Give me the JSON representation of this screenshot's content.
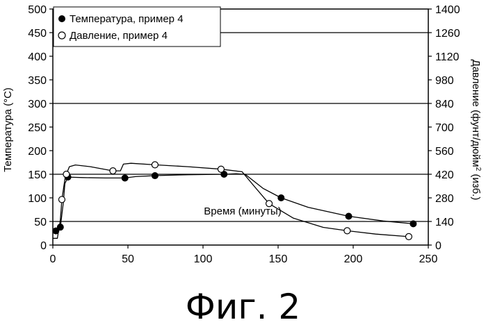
{
  "caption": "Фиг. 2",
  "chart_data": {
    "type": "line",
    "title": "",
    "xlabel": "Время (минуты)",
    "ylabel": "Температура (°C)",
    "y2label_main": "Давление (фунт/дюйм",
    "y2label_sup": "2",
    "y2label_tail": " (изб.)",
    "xlim": [
      0,
      250
    ],
    "ylim": [
      0,
      500
    ],
    "y2lim": [
      0,
      1400
    ],
    "xticks": [
      0,
      50,
      100,
      150,
      200,
      250
    ],
    "yticks": [
      0,
      50,
      100,
      150,
      200,
      250,
      300,
      350,
      400,
      450,
      500
    ],
    "y2ticks": [
      0,
      140,
      280,
      420,
      560,
      700,
      840,
      980,
      1120,
      1260,
      1400
    ],
    "gridlines_y": [
      50,
      150,
      300,
      450
    ],
    "legend_position": "top-left",
    "series": [
      {
        "name": "Температура, пример 4",
        "axis": "left",
        "marker": "filled-circle",
        "points": [
          [
            2,
            30
          ],
          [
            5,
            38
          ],
          [
            10,
            144
          ],
          [
            48,
            142
          ],
          [
            68,
            147
          ],
          [
            114,
            150
          ],
          [
            152,
            100
          ],
          [
            197,
            61
          ],
          [
            240,
            45
          ]
        ],
        "curve": [
          [
            0,
            28
          ],
          [
            2,
            30
          ],
          [
            5,
            38
          ],
          [
            7,
            90
          ],
          [
            8,
            130
          ],
          [
            10,
            144
          ],
          [
            20,
            143
          ],
          [
            35,
            142
          ],
          [
            48,
            142
          ],
          [
            55,
            145
          ],
          [
            68,
            147
          ],
          [
            90,
            149
          ],
          [
            114,
            150
          ],
          [
            122,
            151
          ],
          [
            128,
            150
          ],
          [
            140,
            120
          ],
          [
            152,
            100
          ],
          [
            170,
            80
          ],
          [
            197,
            61
          ],
          [
            220,
            51
          ],
          [
            240,
            45
          ]
        ]
      },
      {
        "name": "Давление, пример 4",
        "axis": "right",
        "marker": "open-circle",
        "points": [
          [
            6,
            270
          ],
          [
            9,
            420
          ],
          [
            40,
            440
          ],
          [
            68,
            476
          ],
          [
            112,
            450
          ],
          [
            144,
            246
          ],
          [
            196,
            85
          ],
          [
            237,
            50
          ]
        ],
        "curve": [
          [
            0,
            40
          ],
          [
            3,
            40
          ],
          [
            5,
            150
          ],
          [
            6,
            270
          ],
          [
            8,
            390
          ],
          [
            9,
            420
          ],
          [
            11,
            465
          ],
          [
            15,
            475
          ],
          [
            25,
            465
          ],
          [
            40,
            440
          ],
          [
            45,
            440
          ],
          [
            47,
            480
          ],
          [
            52,
            485
          ],
          [
            68,
            476
          ],
          [
            90,
            465
          ],
          [
            112,
            450
          ],
          [
            126,
            435
          ],
          [
            134,
            350
          ],
          [
            144,
            246
          ],
          [
            160,
            160
          ],
          [
            180,
            105
          ],
          [
            196,
            85
          ],
          [
            215,
            65
          ],
          [
            237,
            50
          ]
        ]
      }
    ]
  }
}
